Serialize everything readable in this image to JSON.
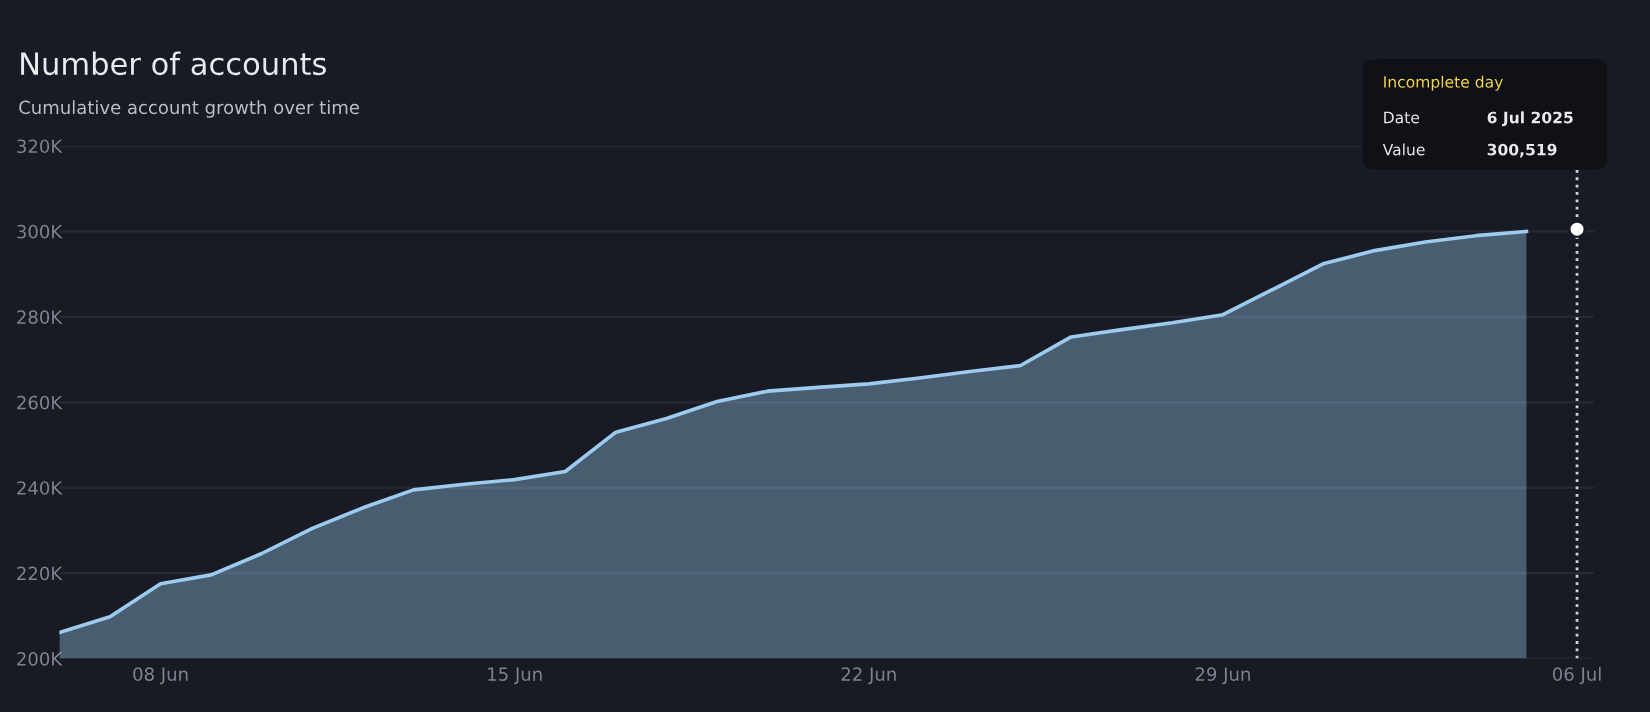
{
  "chart_data": {
    "type": "area",
    "title": "Number of accounts",
    "subtitle": "Cumulative account growth over time",
    "x": [
      "2025-06-06",
      "2025-06-07",
      "2025-06-08",
      "2025-06-09",
      "2025-06-10",
      "2025-06-11",
      "2025-06-12",
      "2025-06-13",
      "2025-06-14",
      "2025-06-15",
      "2025-06-16",
      "2025-06-17",
      "2025-06-18",
      "2025-06-19",
      "2025-06-20",
      "2025-06-21",
      "2025-06-22",
      "2025-06-23",
      "2025-06-24",
      "2025-06-25",
      "2025-06-26",
      "2025-06-27",
      "2025-06-28",
      "2025-06-29",
      "2025-06-30",
      "2025-07-01",
      "2025-07-02",
      "2025-07-03",
      "2025-07-04",
      "2025-07-05"
    ],
    "series": [
      {
        "color": "#9ccbef",
        "values": [
          206100,
          209800,
          217500,
          219600,
          224600,
          230500,
          235300,
          239500,
          240800,
          241900,
          243800,
          253000,
          256200,
          260200,
          262600,
          263500,
          264300,
          265700,
          267200,
          268600,
          275300,
          277000,
          278600,
          280500,
          286500,
          292500,
          295500,
          297500,
          299000,
          300000
        ]
      },
      {
        "type": "scatter",
        "color": "#ffffff",
        "x": [
          "2025-07-06"
        ],
        "values": [
          300519
        ]
      }
    ],
    "xlim": [
      "2025-06-06",
      "2025-07-06T08:00"
    ],
    "xticks": [
      {
        "value": "2025-06-08",
        "label": "08 Jun"
      },
      {
        "value": "2025-06-15",
        "label": "15 Jun"
      },
      {
        "value": "2025-06-22",
        "label": "22 Jun"
      },
      {
        "value": "2025-06-29",
        "label": "29 Jun"
      },
      {
        "value": "2025-07-06",
        "label": "06 Jul"
      }
    ],
    "ylim": [
      200000,
      320000
    ],
    "yticks": [
      {
        "value": 200000,
        "label": "200K"
      },
      {
        "value": 220000,
        "label": "220K"
      },
      {
        "value": 240000,
        "label": "240K"
      },
      {
        "value": 260000,
        "label": "260K"
      },
      {
        "value": 280000,
        "label": "280K"
      },
      {
        "value": 300000,
        "label": "300K"
      },
      {
        "value": 320000,
        "label": "320K"
      }
    ],
    "grid": "y",
    "ref_lines": [
      {
        "axis": "x",
        "value": "2025-07-06",
        "color": "#cfd3da",
        "line_style": "dotted"
      }
    ],
    "annotations": [
      "Incomplete day",
      "Date",
      "6 Jul 2025",
      "Value",
      "300,519"
    ]
  }
}
